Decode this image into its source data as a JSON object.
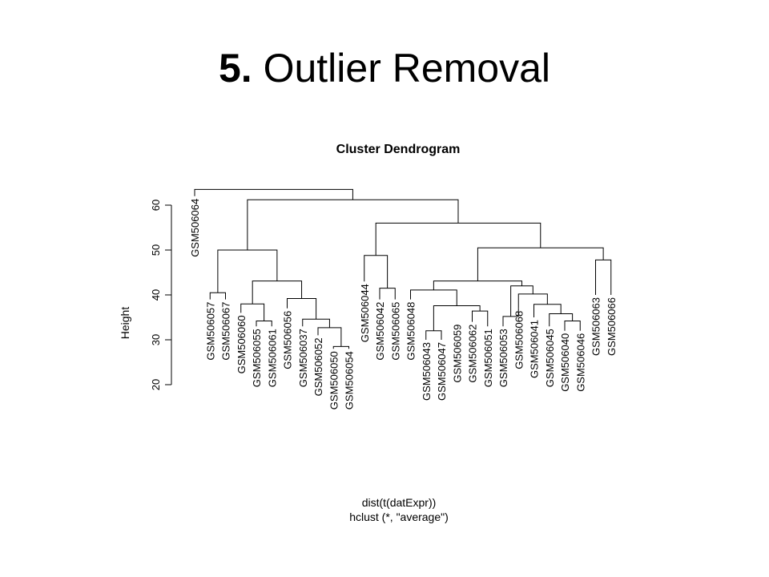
{
  "slide": {
    "number": "5.",
    "title": "Outlier Removal"
  },
  "chart_data": {
    "type": "dendrogram",
    "title": "Cluster Dendrogram",
    "ylabel": "Height",
    "xlabel": "dist(t(datExpr))",
    "subtitle": "hclust (*, \"average\")",
    "ylim": [
      20,
      62
    ],
    "yticks": [
      20,
      30,
      40,
      50,
      60
    ],
    "leaves": [
      {
        "label": "GSM506064",
        "height": 62
      },
      {
        "label": "GSM506057",
        "height": 39
      },
      {
        "label": "GSM506067",
        "height": 39
      },
      {
        "label": "GSM506060",
        "height": 36
      },
      {
        "label": "GSM506055",
        "height": 33
      },
      {
        "label": "GSM506061",
        "height": 33
      },
      {
        "label": "GSM506056",
        "height": 37
      },
      {
        "label": "GSM506037",
        "height": 33
      },
      {
        "label": "GSM506052",
        "height": 31
      },
      {
        "label": "GSM506050",
        "height": 28
      },
      {
        "label": "GSM506054",
        "height": 28
      },
      {
        "label": "GSM506044",
        "height": 43
      },
      {
        "label": "GSM506042",
        "height": 39
      },
      {
        "label": "GSM506065",
        "height": 39
      },
      {
        "label": "GSM506048",
        "height": 39
      },
      {
        "label": "GSM506043",
        "height": 30
      },
      {
        "label": "GSM506047",
        "height": 30
      },
      {
        "label": "GSM506059",
        "height": 34
      },
      {
        "label": "GSM506062",
        "height": 34
      },
      {
        "label": "GSM506051",
        "height": 33
      },
      {
        "label": "GSM506053",
        "height": 33
      },
      {
        "label": "GSM506068",
        "height": 37
      },
      {
        "label": "GSM506041",
        "height": 35
      },
      {
        "label": "GSM506045",
        "height": 33
      },
      {
        "label": "GSM506040",
        "height": 32
      },
      {
        "label": "GSM506046",
        "height": 32
      },
      {
        "label": "GSM506063",
        "height": 40
      },
      {
        "label": "GSM506066",
        "height": 40
      }
    ],
    "merges": [
      {
        "left": 9,
        "right": 10,
        "height": 28.5
      },
      {
        "left": 4,
        "right": 5,
        "height": 34.2
      },
      {
        "left": 15,
        "right": 16,
        "height": 32.0
      },
      {
        "left": 24,
        "right": 25,
        "height": 34.2
      },
      {
        "left": 1,
        "right": 2,
        "height": 40.5
      },
      {
        "left": 12,
        "right": 13,
        "height": 41.5
      },
      {
        "left": 8,
        "right": -1,
        "height": 32.7
      },
      {
        "left": 7,
        "right": -7,
        "height": 34.6
      },
      {
        "left": 23,
        "right": -4,
        "height": 35.8
      },
      {
        "left": 3,
        "right": -2,
        "height": 38.0
      },
      {
        "left": 18,
        "right": 19,
        "height": 36.4
      },
      {
        "left": 26,
        "right": 27,
        "height": 47.8
      },
      {
        "left": 22,
        "right": -9,
        "height": 37.9
      },
      {
        "left": -3,
        "right": -11,
        "height": 37.6
      },
      {
        "left": 6,
        "right": -8,
        "height": 39.2
      },
      {
        "left": 20,
        "right": 21,
        "height": 35.2
      },
      {
        "left": 11,
        "right": -6,
        "height": 48.8
      },
      {
        "left": 21,
        "right": -13,
        "height": 40.2
      },
      {
        "left": -16,
        "right": -18,
        "height": 42.0
      },
      {
        "left": -10,
        "right": -15,
        "height": 43.1
      },
      {
        "left": 14,
        "right": -14,
        "height": 41.1
      },
      {
        "left": -21,
        "right": -19,
        "height": 43.1
      },
      {
        "left": -5,
        "right": -20,
        "height": 50.0
      },
      {
        "left": -22,
        "right": -12,
        "height": 50.5
      },
      {
        "left": -17,
        "right": -24,
        "height": 56.0
      },
      {
        "left": -23,
        "right": -25,
        "height": 61.2
      },
      {
        "left": 0,
        "right": -26,
        "height": 63.5
      }
    ]
  }
}
